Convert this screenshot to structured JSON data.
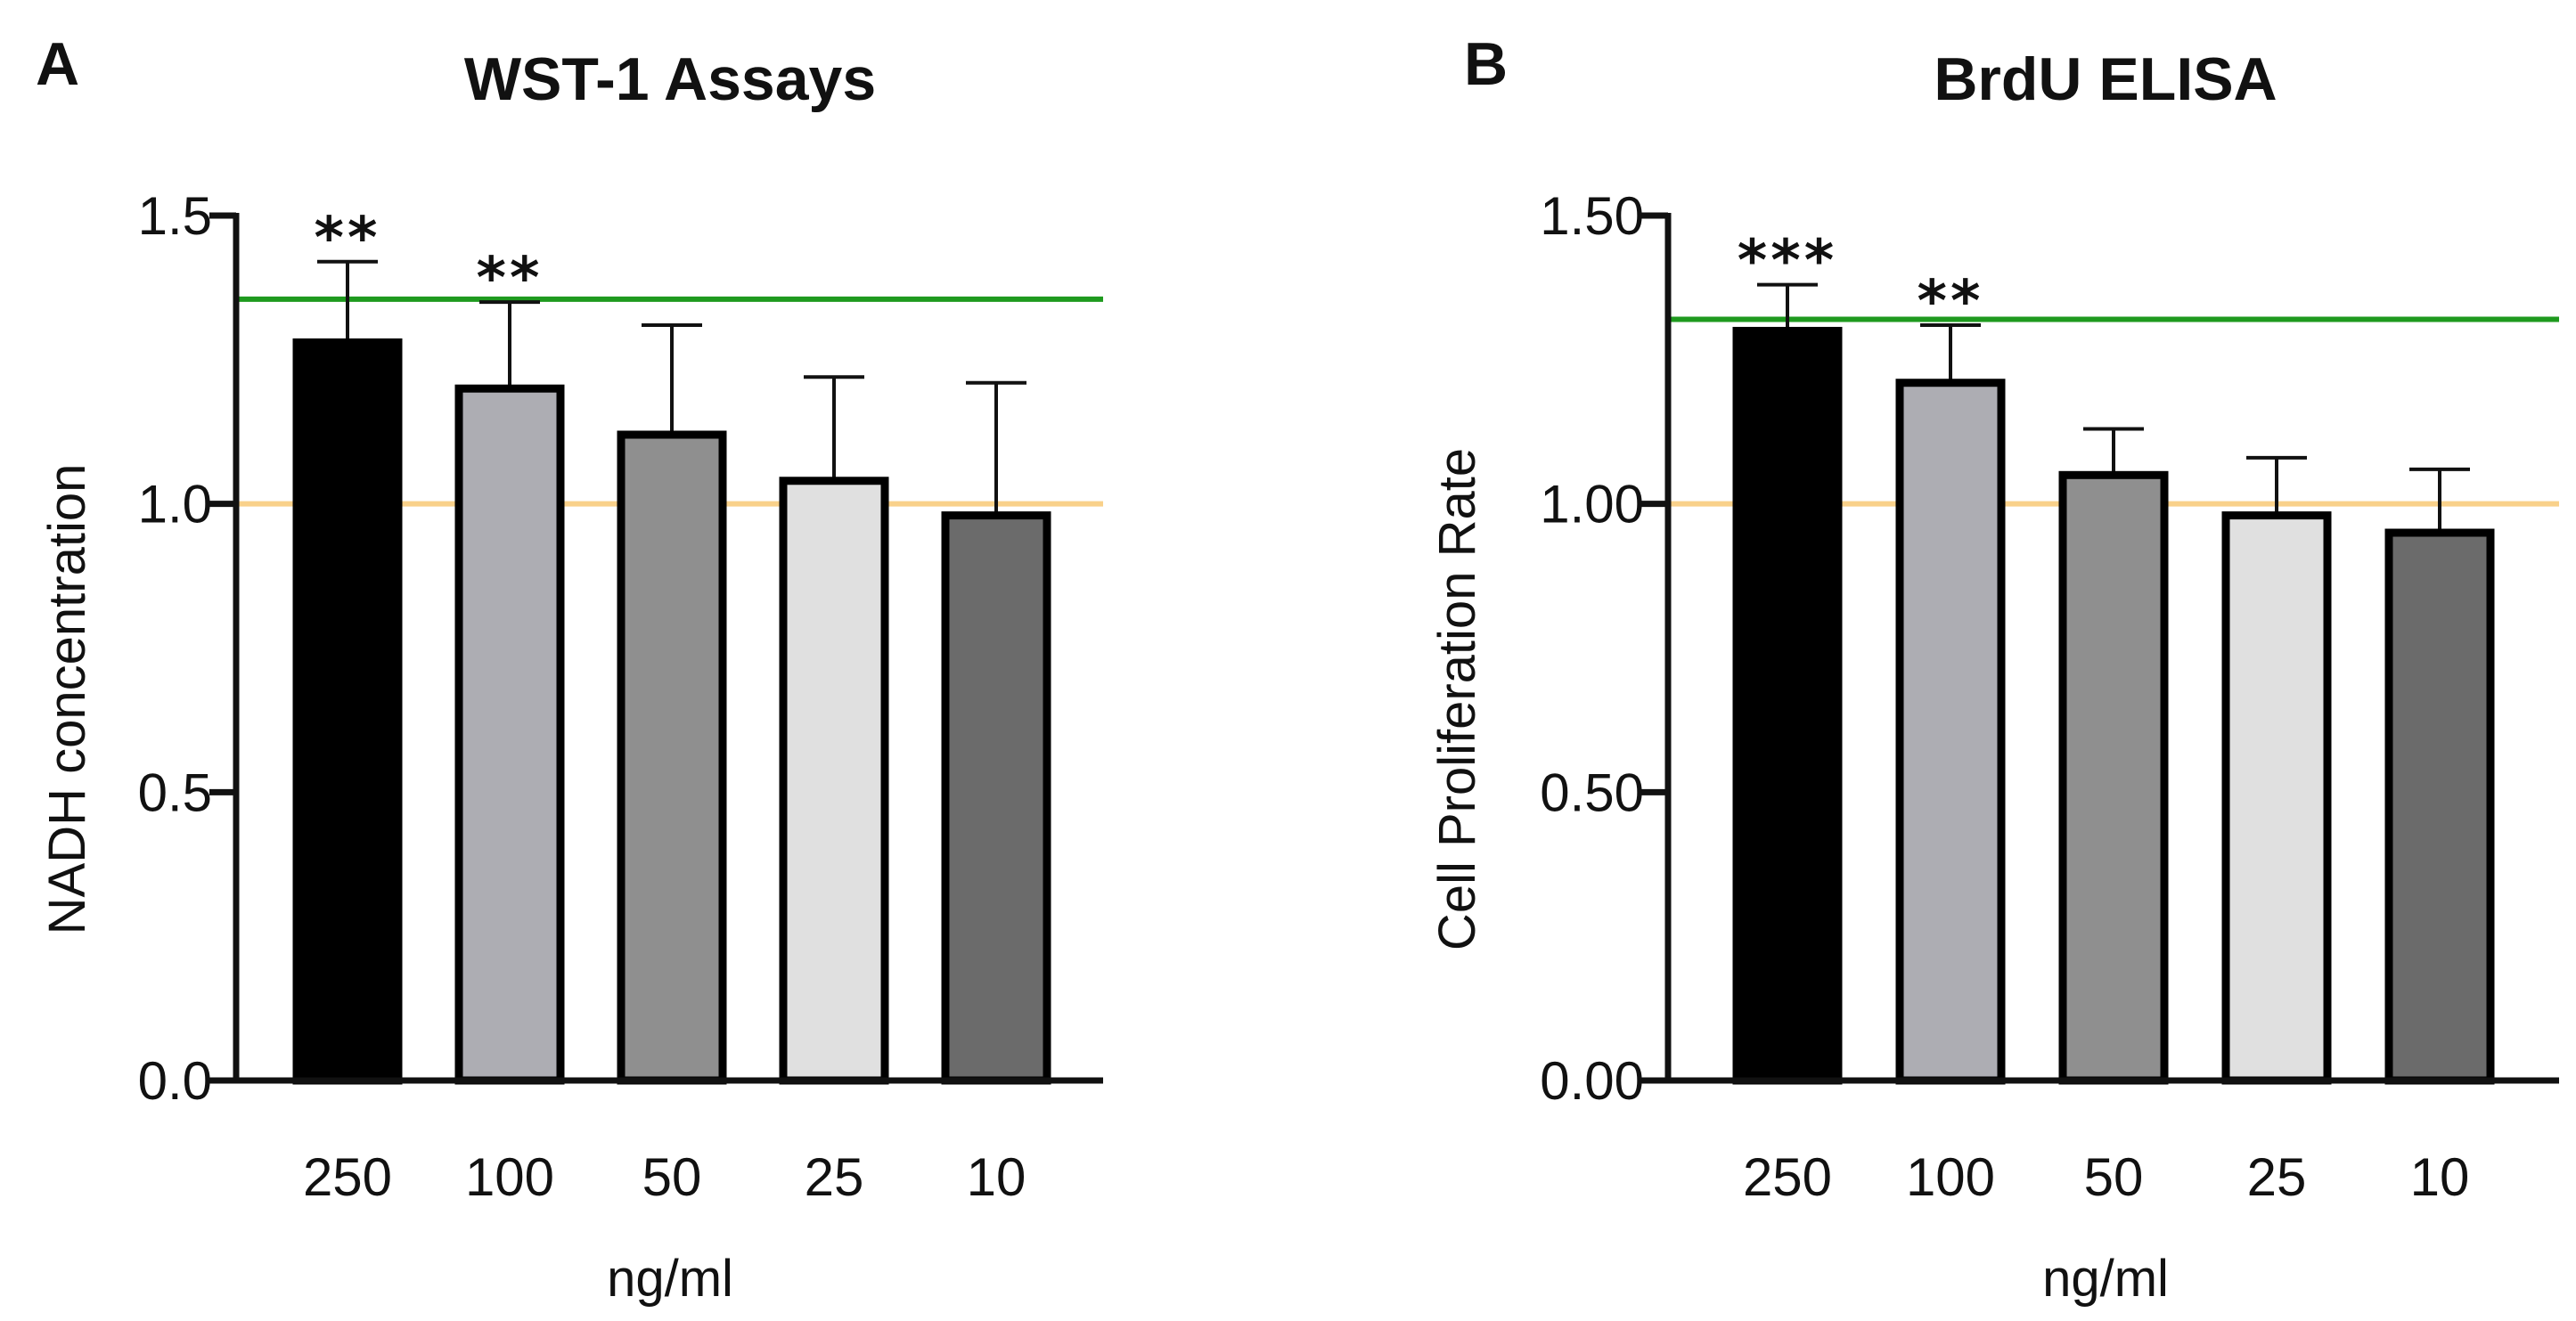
{
  "chart_data": [
    {
      "type": "bar",
      "panel": "A",
      "title": "WST-1 Assays",
      "xlabel": "ng/ml",
      "ylabel": "NADH concentration",
      "ylim": [
        0,
        1.5
      ],
      "yticks": [
        0.0,
        0.5,
        1.0,
        1.5
      ],
      "ytick_labels": [
        "0.0",
        "0.5",
        "1.0",
        "1.5"
      ],
      "categories": [
        "250",
        "100",
        "50",
        "25",
        "10"
      ],
      "values": [
        1.28,
        1.2,
        1.12,
        1.04,
        0.98
      ],
      "errors": [
        0.14,
        0.15,
        0.19,
        0.18,
        0.23
      ],
      "bar_colors": [
        "#000000",
        "#adadb3",
        "#8f8f8f",
        "#e0e0e0",
        "#6b6b6b"
      ],
      "annotations": [
        "**",
        "**",
        "",
        "",
        ""
      ],
      "reference_lines": [
        {
          "value": 1.355,
          "color": "#1e9a1e"
        },
        {
          "value": 1.0,
          "color": "#f9d18a"
        }
      ]
    },
    {
      "type": "bar",
      "panel": "B",
      "title": "BrdU ELISA",
      "xlabel": "ng/ml",
      "ylabel": "Cell Proliferation Rate",
      "ylim": [
        0,
        1.5
      ],
      "yticks": [
        0.0,
        0.5,
        1.0,
        1.5
      ],
      "ytick_labels": [
        "0.00",
        "0.50",
        "1.00",
        "1.50"
      ],
      "categories": [
        "250",
        "100",
        "50",
        "25",
        "10"
      ],
      "values": [
        1.3,
        1.21,
        1.05,
        0.98,
        0.95
      ],
      "errors": [
        0.08,
        0.1,
        0.08,
        0.1,
        0.11
      ],
      "bar_colors": [
        "#000000",
        "#adadb3",
        "#8f8f8f",
        "#e0e0e0",
        "#6b6b6b"
      ],
      "annotations": [
        "***",
        "**",
        "",
        "",
        ""
      ],
      "reference_lines": [
        {
          "value": 1.32,
          "color": "#1e9a1e"
        },
        {
          "value": 1.0,
          "color": "#f9d18a"
        }
      ]
    }
  ]
}
